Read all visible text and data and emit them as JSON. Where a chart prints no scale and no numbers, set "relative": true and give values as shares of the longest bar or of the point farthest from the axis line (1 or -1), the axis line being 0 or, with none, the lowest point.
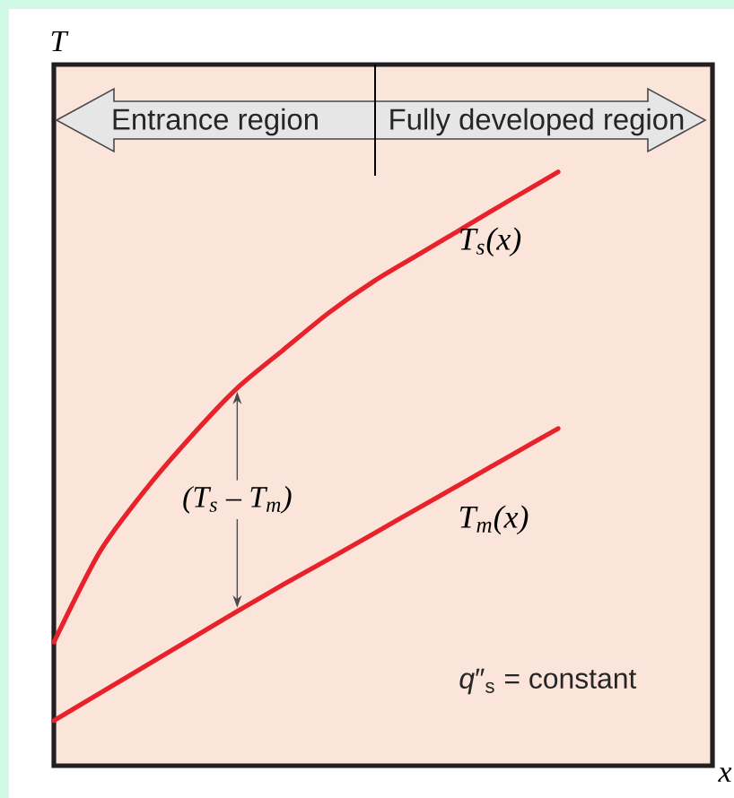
{
  "chart_data": {
    "type": "line",
    "relative": true,
    "xlabel": "x",
    "ylabel": "T",
    "categories": [
      null,
      null,
      null,
      null,
      null,
      null,
      null,
      null,
      null,
      null,
      null,
      null
    ],
    "series": [
      {
        "name": "T$_{s}$(x)",
        "color": "#e8222a",
        "values": [
          0.208,
          0.36,
          0.465,
          0.555,
          0.636,
          0.7,
          0.763,
          0.817,
          0.863,
          0.909,
          0.955,
          1
        ]
      },
      {
        "name": "T$_{m}$(x)",
        "color": "#e8222a",
        "values": [
          0.076,
          0.122,
          0.168,
          0.214,
          0.26,
          0.305,
          0.348,
          0.392,
          0.436,
          0.48,
          0.524,
          0.568
        ]
      }
    ],
    "annotations": [
      "Entrance region",
      "Fully developed region",
      "(T$_{s}$ – T$_{m}$)",
      "*q*″$_{s}$ = constant"
    ]
  }
}
